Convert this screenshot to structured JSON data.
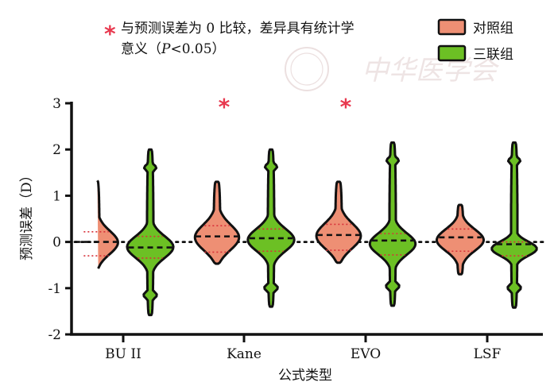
{
  "chart_data": {
    "type": "violin",
    "ylabel": "预测误差（D）",
    "xlabel": "公式类型",
    "ylim": [
      -2,
      3
    ],
    "yticks": [
      "-2",
      "-1",
      "0",
      "1",
      "2",
      "3"
    ],
    "categories": [
      "BU II",
      "Kane",
      "EVO",
      "LSF"
    ],
    "series": [
      {
        "name": "对照组",
        "color": "#EE8F74",
        "groups": [
          {
            "median": 0.0,
            "q1": -0.3,
            "q3": 0.22,
            "min": -0.6,
            "max": 1.33
          },
          {
            "median": 0.12,
            "q1": -0.22,
            "q3": 0.35,
            "min": -0.47,
            "max": 1.3
          },
          {
            "median": 0.15,
            "q1": -0.18,
            "q3": 0.38,
            "min": -0.45,
            "max": 1.3
          },
          {
            "median": 0.1,
            "q1": -0.2,
            "q3": 0.28,
            "min": -0.7,
            "max": 0.8
          }
        ]
      },
      {
        "name": "三联组",
        "color": "#6CC024",
        "groups": [
          {
            "median": -0.12,
            "q1": -0.35,
            "q3": 0.12,
            "min": -1.58,
            "max": 2.0
          },
          {
            "median": 0.08,
            "q1": -0.2,
            "q3": 0.28,
            "min": -1.4,
            "max": 2.0
          },
          {
            "median": 0.03,
            "q1": -0.28,
            "q3": 0.18,
            "min": -1.38,
            "max": 2.15
          },
          {
            "median": -0.05,
            "q1": -0.3,
            "q3": 0.0,
            "min": -1.42,
            "max": 2.15
          }
        ]
      }
    ],
    "reference_line": 0,
    "significance": [
      "Kane",
      "EVO"
    ],
    "annotation": {
      "star": "*",
      "line1": "与预测误差为 0 比较，差异具有统计学",
      "line2_pre": "意义（",
      "line2_italic": "P",
      "line2_post": "<0.05）"
    },
    "legend_position": "top-right",
    "watermark": "中华医学会"
  }
}
